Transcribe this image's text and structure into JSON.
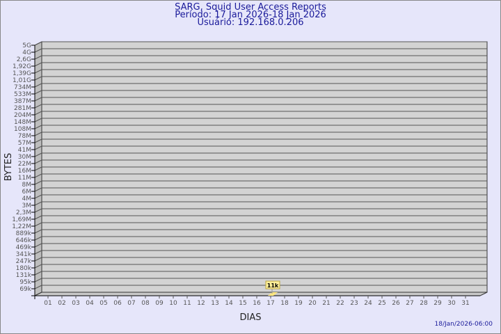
{
  "chart_data": {
    "type": "bar",
    "title": "SARG, Squid User Access Reports",
    "subtitle_period": "Período: 17 Jan 2026-18 Jan 2026",
    "subtitle_user": "Usuário: 192.168.0.206",
    "xlabel": "DIAS",
    "ylabel": "BYTES",
    "categories": [
      "01",
      "02",
      "03",
      "04",
      "05",
      "06",
      "07",
      "08",
      "09",
      "10",
      "11",
      "12",
      "13",
      "14",
      "15",
      "16",
      "17",
      "18",
      "19",
      "20",
      "21",
      "22",
      "23",
      "24",
      "25",
      "26",
      "27",
      "28",
      "29",
      "30",
      "31"
    ],
    "y_tick_labels": [
      "5G",
      "4G",
      "2,6G",
      "1,92G",
      "1,39G",
      "1,01G",
      "734M",
      "533M",
      "387M",
      "281M",
      "204M",
      "148M",
      "108M",
      "78M",
      "57M",
      "41M",
      "30M",
      "22M",
      "16M",
      "11M",
      "8M",
      "6M",
      "4M",
      "3M",
      "2,3M",
      "1,69M",
      "1,22M",
      "889k",
      "646k",
      "469k",
      "341k",
      "247k",
      "180k",
      "131k",
      "95k",
      "69k"
    ],
    "y_scale": "log",
    "series": [
      {
        "points": [
          {
            "x": "17",
            "value": 11000,
            "label": "11k"
          }
        ]
      }
    ],
    "grid": true,
    "colors": {
      "bar": "#ffe680",
      "wall": "#d3d3d3",
      "background": "#e6e6fa",
      "title": "#1a1a9a"
    }
  },
  "footer": {
    "timestamp": "18/Jan/2026-06:00"
  }
}
